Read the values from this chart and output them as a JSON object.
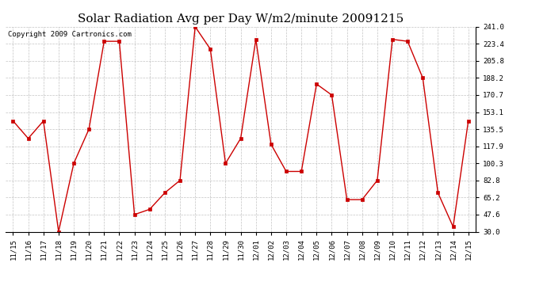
{
  "title": "Solar Radiation Avg per Day W/m2/minute 20091215",
  "copyright": "Copyright 2009 Cartronics.com",
  "labels": [
    "11/15",
    "11/16",
    "11/17",
    "11/18",
    "11/19",
    "11/20",
    "11/21",
    "11/22",
    "11/23",
    "11/24",
    "11/25",
    "11/26",
    "11/27",
    "11/28",
    "11/29",
    "11/30",
    "12/01",
    "12/02",
    "12/03",
    "12/04",
    "12/05",
    "12/06",
    "12/07",
    "12/08",
    "12/09",
    "12/10",
    "12/11",
    "12/12",
    "12/13",
    "12/14",
    "12/15"
  ],
  "values": [
    144.0,
    126.0,
    144.0,
    30.0,
    100.3,
    135.5,
    226.0,
    226.0,
    47.6,
    53.0,
    70.0,
    82.8,
    241.0,
    218.0,
    100.3,
    126.0,
    228.0,
    120.0,
    92.0,
    92.0,
    182.0,
    170.7,
    63.0,
    63.0,
    82.8,
    228.0,
    226.0,
    188.2,
    70.0,
    35.0,
    144.0
  ],
  "line_color": "#cc0000",
  "marker": "s",
  "marker_size": 2.5,
  "ylim": [
    30.0,
    241.0
  ],
  "yticks": [
    30.0,
    47.6,
    65.2,
    82.8,
    100.3,
    117.9,
    135.5,
    153.1,
    170.7,
    188.2,
    205.8,
    223.4,
    241.0
  ],
  "background_color": "#ffffff",
  "grid_color": "#aaaaaa",
  "title_fontsize": 11,
  "tick_fontsize": 6.5,
  "copyright_fontsize": 6.5
}
